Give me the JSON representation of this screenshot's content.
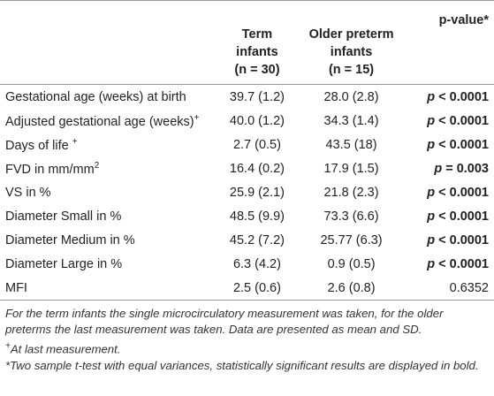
{
  "table": {
    "header": [
      {
        "title": "Term",
        "subtitle": "infants",
        "n": "(n = 30)"
      },
      {
        "title": "Older preterm",
        "subtitle": "infants",
        "n": "(n = 15)"
      },
      {
        "title": "p-value*",
        "subtitle": "",
        "n": ""
      }
    ],
    "rows": [
      {
        "label": "Gestational age (weeks) at birth",
        "sup": "",
        "term": "39.7 (1.2)",
        "preterm": "28.0 (2.8)",
        "p_symbol": "p",
        "p_text": "< 0.0001",
        "bold": true
      },
      {
        "label": "Adjusted gestational age (weeks)",
        "sup": "+",
        "term": "40.0 (1.2)",
        "preterm": "34.3 (1.4)",
        "p_symbol": "p",
        "p_text": "< 0.0001",
        "bold": true
      },
      {
        "label": "Days of life ",
        "sup": "+",
        "term": "2.7 (0.5)",
        "preterm": "43.5 (18)",
        "p_symbol": "p",
        "p_text": "< 0.0001",
        "bold": true
      },
      {
        "label": "FVD in mm/mm",
        "sup": "2",
        "term": "16.4 (0.2)",
        "preterm": "17.9 (1.5)",
        "p_symbol": "p",
        "p_text": "= 0.003",
        "bold": true
      },
      {
        "label": "VS in %",
        "sup": "",
        "term": "25.9 (2.1)",
        "preterm": "21.8 (2.3)",
        "p_symbol": "p",
        "p_text": "< 0.0001",
        "bold": true
      },
      {
        "label": "Diameter Small in %",
        "sup": "",
        "term": "48.5 (9.9)",
        "preterm": "73.3 (6.6)",
        "p_symbol": "p",
        "p_text": "< 0.0001",
        "bold": true
      },
      {
        "label": "Diameter Medium in %",
        "sup": "",
        "term": "45.2 (7.2)",
        "preterm": "25.77 (6.3)",
        "p_symbol": "p",
        "p_text": "< 0.0001",
        "bold": true
      },
      {
        "label": "Diameter Large in %",
        "sup": "",
        "term": "6.3 (4.2)",
        "preterm": "0.9 (0.5)",
        "p_symbol": "p",
        "p_text": "< 0.0001",
        "bold": true
      },
      {
        "label": "MFI",
        "sup": "",
        "term": "2.5 (0.6)",
        "preterm": "2.6 (0.8)",
        "p_symbol": "",
        "p_text": "0.6352",
        "bold": false
      }
    ]
  },
  "footnotes": [
    {
      "sup": "",
      "text": "For the term infants the single microcirculatory measurement was taken, for the older preterms the last measurement was taken. Data are presented as mean and SD."
    },
    {
      "sup": "+",
      "text": "At last measurement."
    },
    {
      "sup": "",
      "text": "*Two sample t-test with equal variances, statistically significant results are displayed in bold."
    }
  ]
}
